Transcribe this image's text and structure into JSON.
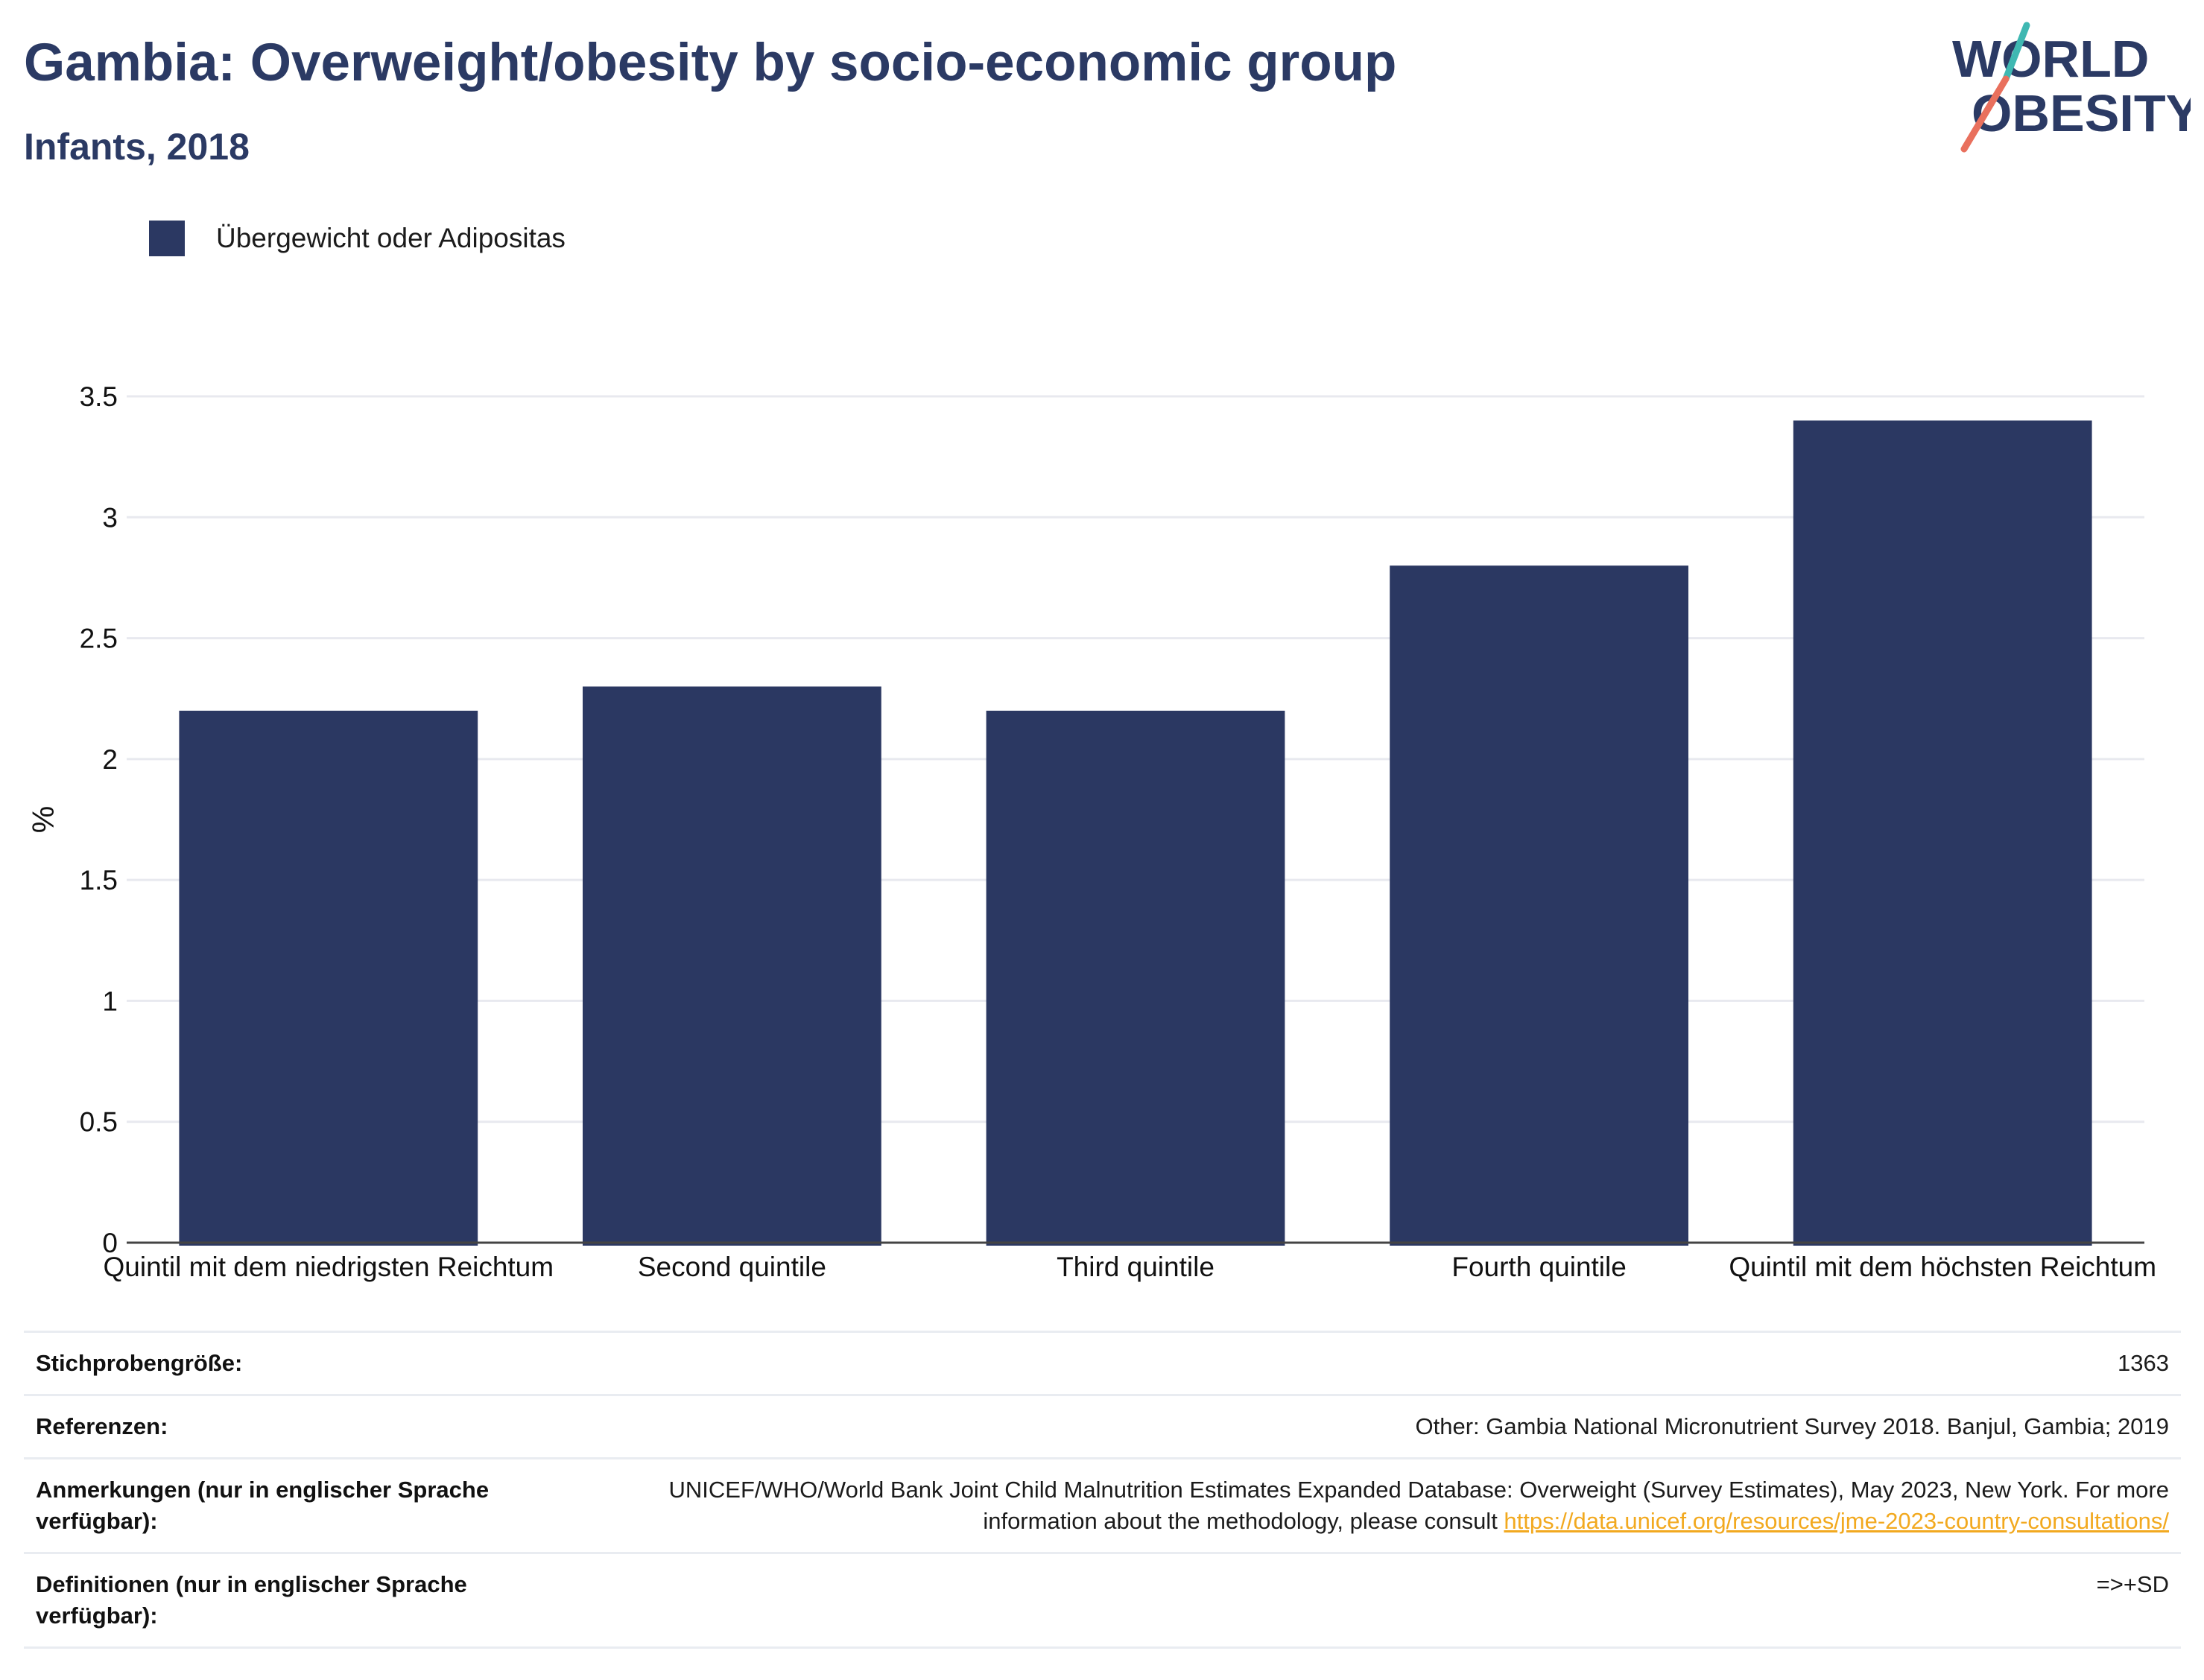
{
  "header": {
    "title": "Gambia: Overweight/obesity by socio-economic group",
    "subtitle": "Infants, 2018"
  },
  "logo": {
    "line1": "WORLD",
    "line2": "OBESITY",
    "text_color": "#2b3a64",
    "slash_colors": [
      "#3fb8b2",
      "#e9705d"
    ]
  },
  "colors": {
    "bar": "#2b3862",
    "title": "#2b3a64",
    "link": "#f2a91f"
  },
  "legend": {
    "label": "Übergewicht oder Adipositas",
    "placement": "top-left"
  },
  "chart_data": {
    "type": "bar",
    "categories": [
      "Quintil mit dem niedrigsten Reichtum",
      "Second quintile",
      "Third quintile",
      "Fourth quintile",
      "Quintil mit dem höchsten Reichtum"
    ],
    "series": [
      {
        "name": "Übergewicht oder Adipositas",
        "values": [
          2.2,
          2.3,
          2.2,
          2.8,
          3.4
        ]
      }
    ],
    "ylabel": "%",
    "ylim": [
      0,
      3.5
    ],
    "yticks": [
      0,
      0.5,
      1,
      1.5,
      2,
      2.5,
      3,
      3.5
    ],
    "ytick_labels": [
      "0",
      "0.5",
      "1",
      "1.5",
      "2",
      "2.5",
      "3",
      "3.5"
    ],
    "grid": true
  },
  "info": {
    "sample_size": {
      "label": "Stichprobengröße:",
      "value": "1363"
    },
    "references": {
      "label": "Referenzen:",
      "value": "Other: Gambia National Micronutrient Survey 2018. Banjul, Gambia; 2019"
    },
    "notes": {
      "label": "Anmerkungen (nur in englischer Sprache verfügbar):",
      "value": "UNICEF/WHO/World Bank Joint Child Malnutrition Estimates Expanded Database: Overweight (Survey Estimates), May 2023, New York. For more information about the methodology, please consult ",
      "link": "https://data.unicef.org/resources/jme-2023-country-consultations/"
    },
    "definitions": {
      "label": "Definitionen (nur in englischer Sprache verfügbar):",
      "value": "=>+SD"
    }
  }
}
